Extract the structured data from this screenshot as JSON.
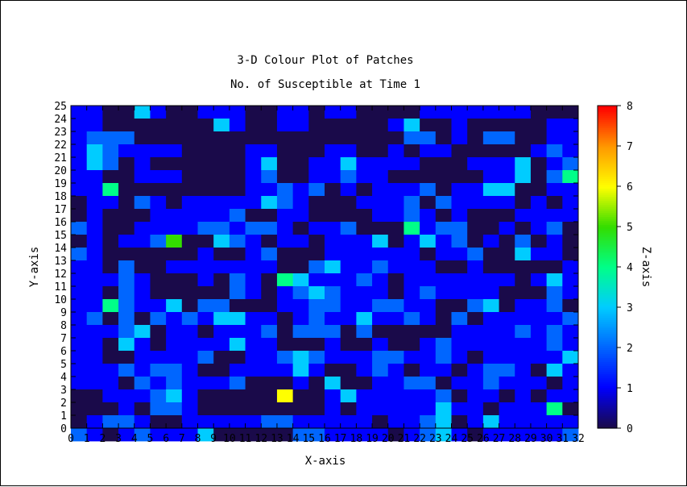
{
  "chart_data": {
    "type": "heatmap",
    "title": "3-D Colour Plot of Patches",
    "subtitle": "No. of Susceptible at Time 1",
    "xlabel": "X-axis",
    "ylabel": "Y-axis",
    "zlabel": "Z-axis",
    "x_ticks": [
      "0",
      "1",
      "2",
      "3",
      "4",
      "5",
      "6",
      "7",
      "8",
      "9",
      "10",
      "11",
      "12",
      "13",
      "14",
      "15",
      "16",
      "17",
      "18",
      "19",
      "20",
      "21",
      "22",
      "23",
      "24",
      "25",
      "26",
      "27",
      "28",
      "29",
      "30",
      "31",
      "32"
    ],
    "y_ticks": [
      "0",
      "1",
      "2",
      "3",
      "4",
      "5",
      "6",
      "7",
      "8",
      "9",
      "10",
      "11",
      "12",
      "13",
      "14",
      "15",
      "16",
      "17",
      "18",
      "19",
      "20",
      "21",
      "22",
      "23",
      "24",
      "25"
    ],
    "z_ticks": [
      "0",
      "1",
      "2",
      "3",
      "4",
      "5",
      "6",
      "7",
      "8"
    ],
    "xlim": [
      0,
      32
    ],
    "ylim": [
      0,
      25
    ],
    "zlim": [
      0,
      8
    ],
    "grid": false,
    "colorscale": [
      "#1a0a4a",
      "#0000ff",
      "#0066ff",
      "#00ccff",
      "#00ff88",
      "#33dd00",
      "#ffff00",
      "#ff9900",
      "#ff0000"
    ],
    "z_rows_top_to_bottom": [
      "11003100111001101100001111111000",
      "11000000031001100000130010000011",
      "12220000000000000000022010220011",
      "13211110000110001100101100000121",
      "13201000000130011311110001113012",
      "11001110000120011211000000113024",
      "11400000000112120101112011330011",
      "01102101111132100011120211110101",
      "01000111112001100001121010001111",
      "21001111221221011200041220010120",
      "01011250032101101113013120102010",
      "21000000100120001111110112003110",
      "11020011111110023112111001000001",
      "11121000102104311121011111110131",
      "11021000002101232111012111100021",
      "11421130220001122112211002301120",
      "12020212133110121131121020111112",
      "11123011011120222020000011112121",
      "11031011113110001001001211111121",
      "11001111200112321112211210111113",
      "11121221001111310012101101221031",
      "11102121112000103001122011211101",
      "00111231000006001311111201101011",
      "00010221000000001011111311011140",
      "01221001111122111110112301311111",
      "21012111300000221111012310111112"
    ]
  }
}
